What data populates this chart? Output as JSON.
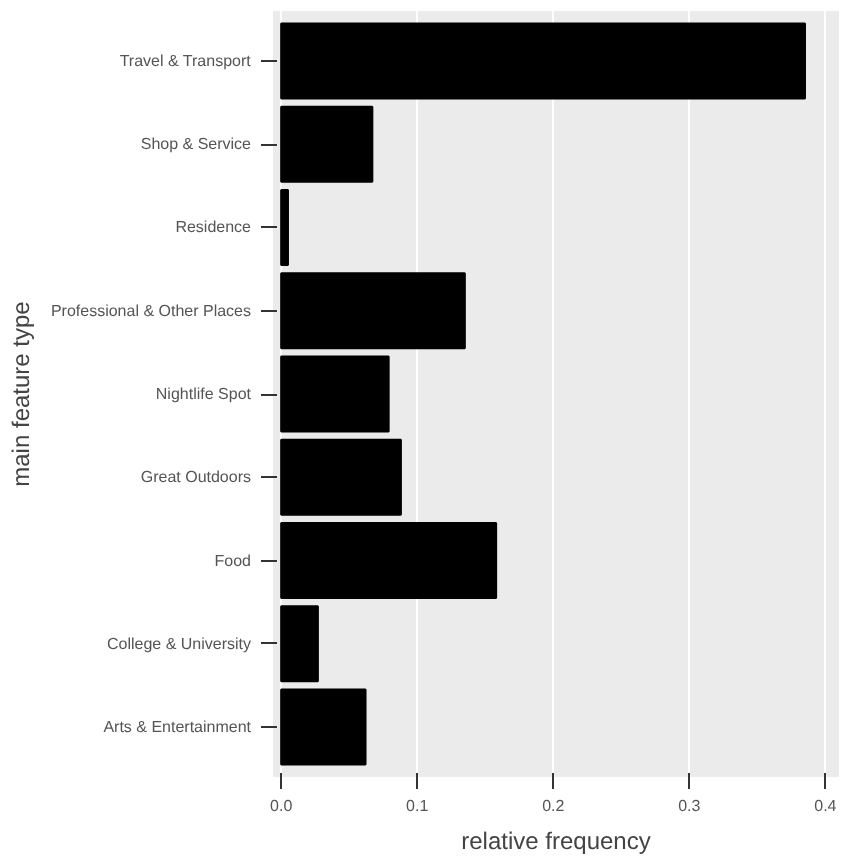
{
  "chart_data": {
    "type": "bar",
    "orientation": "horizontal",
    "xlabel": "relative frequency",
    "ylabel": "main feature type",
    "categories": [
      "Travel & Transport",
      "Shop & Service",
      "Residence",
      "Professional & Other Places",
      "Nightlife Spot",
      "Great Outdoors",
      "Food",
      "College & University",
      "Arts & Entertainment"
    ],
    "values": [
      0.385,
      0.067,
      0.005,
      0.135,
      0.079,
      0.088,
      0.158,
      0.027,
      0.062
    ],
    "color": "#000000",
    "xlim": [
      -0.006,
      0.41
    ],
    "xticks": [
      {
        "value": 0,
        "label": "0.0"
      },
      0.1,
      0.2,
      0.3,
      0.4
    ],
    "grid": "x"
  }
}
